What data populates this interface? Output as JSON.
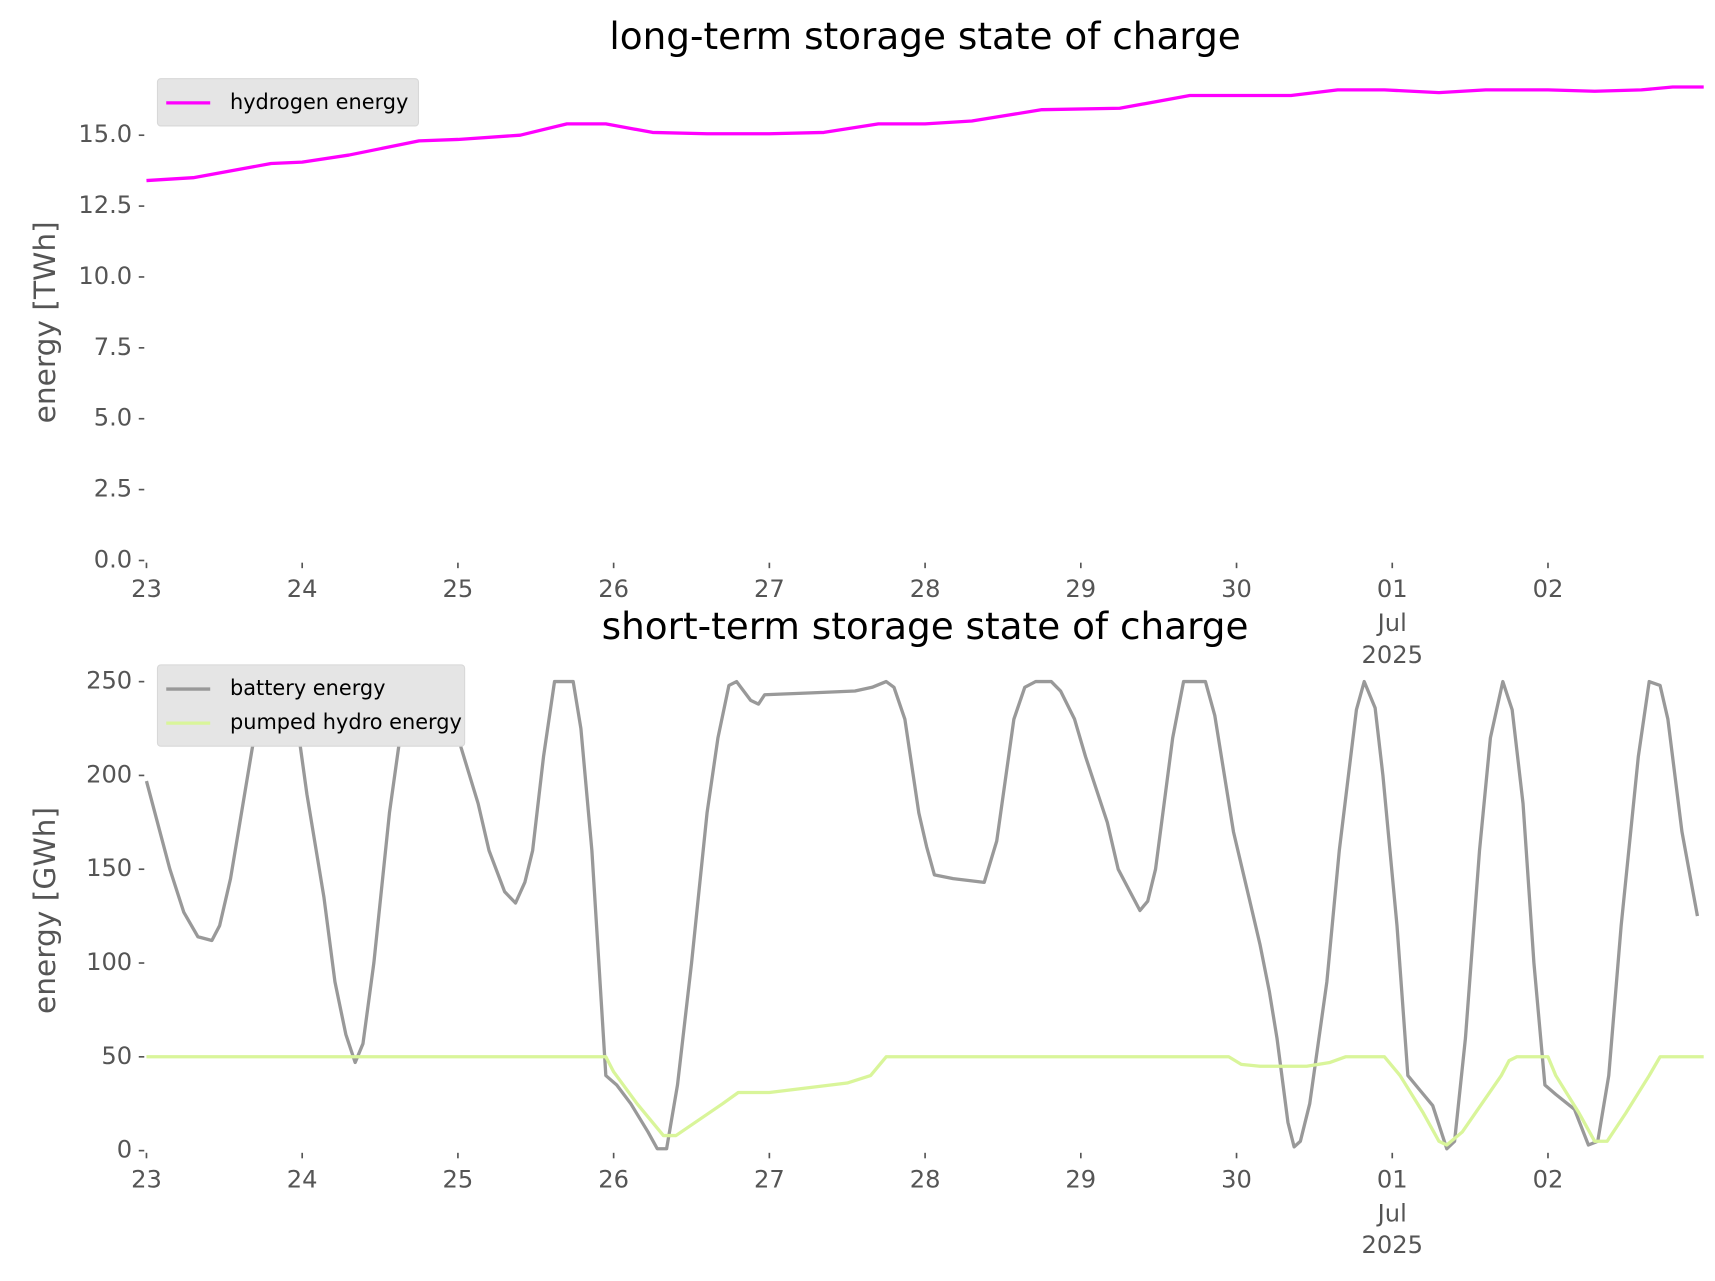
{
  "chart_data": [
    {
      "type": "line",
      "title": "long-term storage state of charge",
      "ylabel": "energy [TWh]",
      "xlim": [
        0,
        10
      ],
      "ylim": [
        0,
        16.8
      ],
      "xticks": [
        {
          "value": 0,
          "label": "23"
        },
        {
          "value": 1,
          "label": "24"
        },
        {
          "value": 2,
          "label": "25"
        },
        {
          "value": 3,
          "label": "26"
        },
        {
          "value": 4,
          "label": "27"
        },
        {
          "value": 5,
          "label": "28"
        },
        {
          "value": 6,
          "label": "29"
        },
        {
          "value": 7,
          "label": "30"
        },
        {
          "value": 8,
          "label": "01",
          "sublabels": [
            "Jul",
            "2025"
          ]
        },
        {
          "value": 9,
          "label": "02"
        }
      ],
      "yticks": [
        {
          "value": 0,
          "label": "0.0"
        },
        2.5,
        {
          "value": 5,
          "label": "5.0"
        },
        7.5,
        {
          "value": 10,
          "label": "10.0"
        },
        12.5,
        {
          "value": 15,
          "label": "15.0"
        }
      ],
      "legend": "upper left",
      "series": [
        {
          "name": "hydrogen energy",
          "color": "#ff00ff",
          "x": [
            0,
            0.3,
            0.8,
            1.0,
            1.3,
            1.75,
            2.0,
            2.4,
            2.7,
            2.95,
            3.25,
            3.6,
            4.0,
            4.35,
            4.7,
            5.0,
            5.3,
            5.75,
            6.25,
            6.7,
            7.35,
            7.65,
            7.95,
            8.3,
            8.6,
            9.0,
            9.3,
            9.6,
            9.8,
            10
          ],
          "values": [
            13.4,
            13.5,
            14.0,
            14.05,
            14.3,
            14.8,
            14.85,
            15.0,
            15.4,
            15.4,
            15.1,
            15.05,
            15.05,
            15.1,
            15.4,
            15.4,
            15.5,
            15.9,
            15.95,
            16.4,
            16.4,
            16.6,
            16.6,
            16.5,
            16.6,
            16.6,
            16.55,
            16.6,
            16.7,
            16.7
          ]
        }
      ]
    },
    {
      "type": "line",
      "title": "short-term storage state of charge",
      "ylabel": "energy [GWh]",
      "xlim": [
        0,
        10
      ],
      "ylim": [
        0,
        256
      ],
      "xticks": [
        {
          "value": 0,
          "label": "23"
        },
        {
          "value": 1,
          "label": "24"
        },
        {
          "value": 2,
          "label": "25"
        },
        {
          "value": 3,
          "label": "26"
        },
        {
          "value": 4,
          "label": "27"
        },
        {
          "value": 5,
          "label": "28"
        },
        {
          "value": 6,
          "label": "29"
        },
        {
          "value": 7,
          "label": "30"
        },
        {
          "value": 8,
          "label": "01",
          "sublabels": [
            "Jul",
            "2025"
          ]
        },
        {
          "value": 9,
          "label": "02"
        }
      ],
      "yticks": [
        0,
        50,
        100,
        150,
        200,
        250
      ],
      "legend": "upper left",
      "series": [
        {
          "name": "battery energy",
          "color": "#999999",
          "x": [
            0,
            0.15,
            0.24,
            0.33,
            0.42,
            0.47,
            0.54,
            0.68,
            0.79,
            0.93,
            1.03,
            1.14,
            1.21,
            1.28,
            1.34,
            1.39,
            1.46,
            1.56,
            1.67,
            1.7,
            1.95,
            2.02,
            2.13,
            2.2,
            2.3,
            2.37,
            2.43,
            2.48,
            2.55,
            2.62,
            2.74,
            2.79,
            2.86,
            2.95,
            3.02,
            3.11,
            3.22,
            3.28,
            3.34,
            3.41,
            3.5,
            3.6,
            3.67,
            3.74,
            3.79,
            3.88,
            3.93,
            3.97,
            4.27,
            4.55,
            4.66,
            4.75,
            4.8,
            4.87,
            4.96,
            5.01,
            5.06,
            5.18,
            5.38,
            5.46,
            5.57,
            5.64,
            5.71,
            5.81,
            5.87,
            5.96,
            6.03,
            6.17,
            6.24,
            6.31,
            6.38,
            6.43,
            6.48,
            6.59,
            6.66,
            6.8,
            6.86,
            6.98,
            7.08,
            7.15,
            7.21,
            7.26,
            7.33,
            7.37,
            7.41,
            7.47,
            7.58,
            7.66,
            7.77,
            7.82,
            7.89,
            7.94,
            8.03,
            8.1,
            8.17,
            8.26,
            8.35,
            8.4,
            8.47,
            8.56,
            8.63,
            8.71,
            8.77,
            8.84,
            8.91,
            8.98,
            9.05,
            9.17,
            9.26,
            9.32,
            9.39,
            9.47,
            9.58,
            9.65,
            9.72,
            9.77,
            9.86,
            9.96
          ],
          "values": [
            197,
            150,
            127,
            114,
            112,
            120,
            145,
            215,
            250,
            250,
            190,
            135,
            90,
            62,
            47,
            57,
            100,
            180,
            245,
            250,
            250,
            215,
            185,
            160,
            138,
            132,
            143,
            160,
            210,
            250,
            250,
            225,
            160,
            40,
            35,
            25,
            10,
            1,
            1,
            35,
            100,
            180,
            220,
            248,
            250,
            240,
            238,
            243,
            244,
            245,
            247,
            250,
            247,
            230,
            180,
            162,
            147,
            145,
            143,
            165,
            230,
            247,
            250,
            250,
            245,
            230,
            210,
            175,
            150,
            139,
            128,
            133,
            150,
            220,
            250,
            250,
            232,
            170,
            135,
            110,
            85,
            60,
            15,
            2,
            5,
            25,
            90,
            160,
            235,
            250,
            236,
            200,
            120,
            40,
            33,
            24,
            1,
            5,
            60,
            160,
            220,
            250,
            235,
            185,
            100,
            35,
            30,
            22,
            3,
            5,
            40,
            120,
            210,
            250,
            248,
            230,
            170,
            125
          ]
        },
        {
          "name": "pumped hydro energy",
          "color": "#d9f59a",
          "x": [
            0,
            2.95,
            3.0,
            3.15,
            3.32,
            3.4,
            3.7,
            3.8,
            4.0,
            4.5,
            4.65,
            4.7,
            4.75,
            6.95,
            7.03,
            7.15,
            7.45,
            7.6,
            7.7,
            7.95,
            8.05,
            8.2,
            8.3,
            8.35,
            8.45,
            8.7,
            8.75,
            8.8,
            9.0,
            9.05,
            9.2,
            9.3,
            9.38,
            9.5,
            9.65,
            9.72,
            10
          ],
          "values": [
            50,
            50,
            42,
            25,
            8,
            8,
            25,
            31,
            31,
            36,
            40,
            45,
            50,
            50,
            46,
            45,
            45,
            47,
            50,
            50,
            40,
            20,
            5,
            3,
            10,
            40,
            48,
            50,
            50,
            40,
            20,
            5,
            5,
            20,
            40,
            50,
            50
          ]
        }
      ]
    }
  ]
}
